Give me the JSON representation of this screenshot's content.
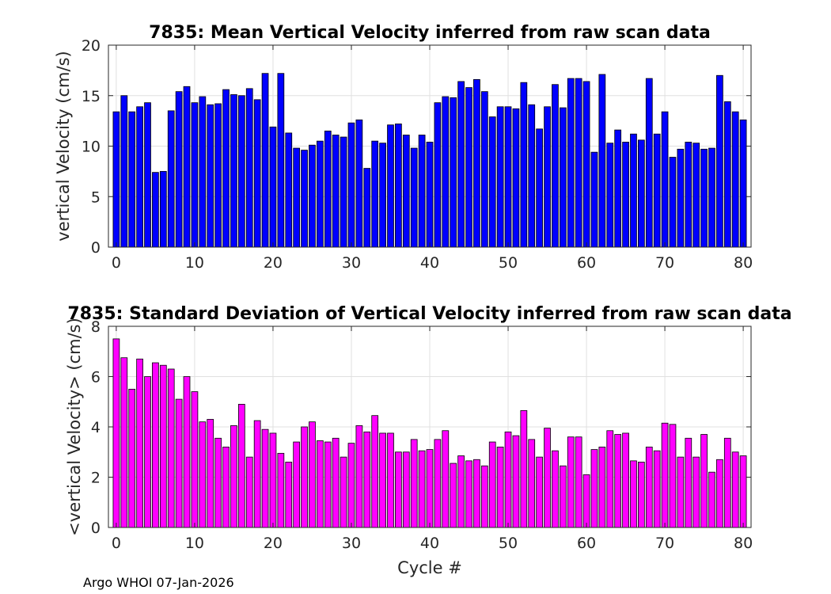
{
  "footer": "Argo WHOI 07-Jan-2026",
  "chart_data": [
    {
      "type": "bar",
      "title": "7835: Mean Vertical Velocity inferred from raw scan data",
      "xlabel": "",
      "ylabel": "vertical Velocity (cm/s)",
      "xlim": [
        -1,
        81
      ],
      "ylim": [
        0,
        20
      ],
      "xticks": [
        0,
        10,
        20,
        30,
        40,
        50,
        60,
        70,
        80
      ],
      "yticks": [
        0,
        5,
        10,
        15,
        20
      ],
      "grid": true,
      "color": "#0000ff",
      "x": [
        0,
        1,
        2,
        3,
        4,
        5,
        6,
        7,
        8,
        9,
        10,
        11,
        12,
        13,
        14,
        15,
        16,
        17,
        18,
        19,
        20,
        21,
        22,
        23,
        24,
        25,
        26,
        27,
        28,
        29,
        30,
        31,
        32,
        33,
        34,
        35,
        36,
        37,
        38,
        39,
        40,
        41,
        42,
        43,
        44,
        45,
        46,
        47,
        48,
        49,
        50,
        51,
        52,
        53,
        54,
        55,
        56,
        57,
        58,
        59,
        60,
        61,
        62,
        63,
        64,
        65,
        66,
        67,
        68,
        69,
        70,
        71,
        72,
        73,
        74,
        75,
        76,
        77,
        78,
        79,
        80
      ],
      "values": [
        13.4,
        15.0,
        13.4,
        13.9,
        14.3,
        7.4,
        7.5,
        13.5,
        15.4,
        15.9,
        14.3,
        14.9,
        14.1,
        14.2,
        15.6,
        15.1,
        15.0,
        15.7,
        14.6,
        17.2,
        11.9,
        17.2,
        11.3,
        9.8,
        9.6,
        10.1,
        10.5,
        11.5,
        11.1,
        10.9,
        12.3,
        12.6,
        7.8,
        10.5,
        10.3,
        12.1,
        12.2,
        11.1,
        9.8,
        11.1,
        10.4,
        14.3,
        14.9,
        14.8,
        16.4,
        15.8,
        16.6,
        15.4,
        12.9,
        13.9,
        13.9,
        13.7,
        16.3,
        14.1,
        11.7,
        13.9,
        16.1,
        13.8,
        16.7,
        16.7,
        16.4,
        9.4,
        17.1,
        10.3,
        11.6,
        10.4,
        11.2,
        10.6,
        16.7,
        11.2,
        13.4,
        8.9,
        9.7,
        10.4,
        10.3,
        9.7,
        9.8,
        17.0,
        14.4,
        13.4,
        12.6
      ]
    },
    {
      "type": "bar",
      "title": "7835: Standard Deviation of Vertical Velocity inferred from raw scan data",
      "xlabel": "Cycle #",
      "ylabel": "<vertical Velocity> (cm/s)",
      "xlim": [
        -1,
        81
      ],
      "ylim": [
        0,
        8
      ],
      "xticks": [
        0,
        10,
        20,
        30,
        40,
        50,
        60,
        70,
        80
      ],
      "yticks": [
        0,
        2,
        4,
        6,
        8
      ],
      "grid": true,
      "color": "#ff00ff",
      "x": [
        0,
        1,
        2,
        3,
        4,
        5,
        6,
        7,
        8,
        9,
        10,
        11,
        12,
        13,
        14,
        15,
        16,
        17,
        18,
        19,
        20,
        21,
        22,
        23,
        24,
        25,
        26,
        27,
        28,
        29,
        30,
        31,
        32,
        33,
        34,
        35,
        36,
        37,
        38,
        39,
        40,
        41,
        42,
        43,
        44,
        45,
        46,
        47,
        48,
        49,
        50,
        51,
        52,
        53,
        54,
        55,
        56,
        57,
        58,
        59,
        60,
        61,
        62,
        63,
        64,
        65,
        66,
        67,
        68,
        69,
        70,
        71,
        72,
        73,
        74,
        75,
        76,
        77,
        78,
        79,
        80
      ],
      "values": [
        7.5,
        6.75,
        5.5,
        6.7,
        6.0,
        6.55,
        6.45,
        6.3,
        5.1,
        6.0,
        5.4,
        4.2,
        4.3,
        3.55,
        3.2,
        4.05,
        4.9,
        2.8,
        4.25,
        3.9,
        3.75,
        2.95,
        2.6,
        3.4,
        4.0,
        4.2,
        3.45,
        3.4,
        3.55,
        2.8,
        3.35,
        4.05,
        3.8,
        4.45,
        3.75,
        3.75,
        3.0,
        3.0,
        3.5,
        3.05,
        3.1,
        3.5,
        3.85,
        2.55,
        2.85,
        2.65,
        2.7,
        2.45,
        3.4,
        3.2,
        3.8,
        3.65,
        4.65,
        3.5,
        2.8,
        3.95,
        3.05,
        2.45,
        3.6,
        3.6,
        2.1,
        3.1,
        3.2,
        3.85,
        3.7,
        3.75,
        2.65,
        2.6,
        3.2,
        3.05,
        4.15,
        4.1,
        2.8,
        3.55,
        2.8,
        3.7,
        2.2,
        2.7,
        3.55,
        3.0,
        2.85
      ]
    }
  ]
}
